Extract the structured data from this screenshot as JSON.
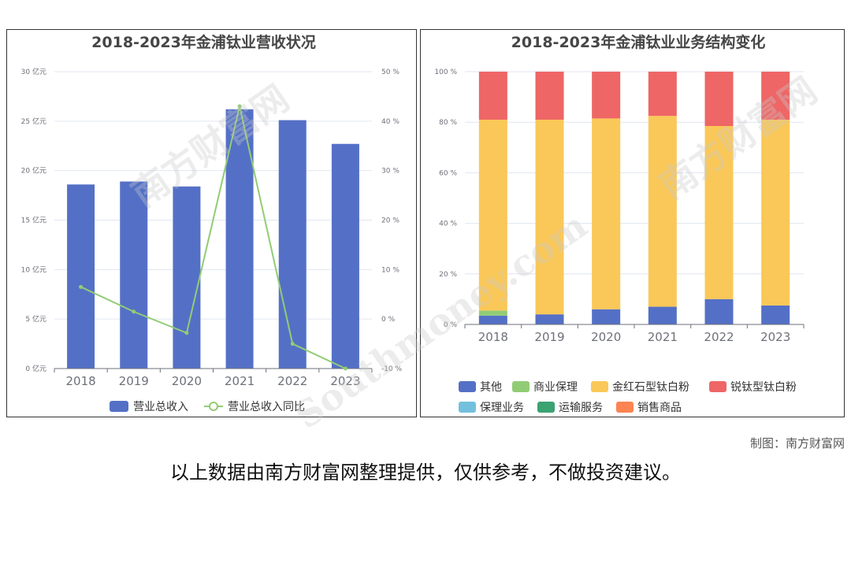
{
  "chart_data": [
    {
      "type": "bar",
      "title": "2018-2023年金浦钛业营收状况",
      "categories": [
        "2018",
        "2019",
        "2020",
        "2021",
        "2022",
        "2023"
      ],
      "y_left": {
        "ticks": [
          "0 亿元",
          "5 亿元",
          "10 亿元",
          "15 亿元",
          "20 亿元",
          "25 亿元",
          "30 亿元"
        ],
        "range": [
          0,
          30
        ]
      },
      "y_right": {
        "ticks": [
          "-10 %",
          "0 %",
          "10 %",
          "20 %",
          "30 %",
          "40 %",
          "50 %"
        ],
        "range": [
          -10,
          50
        ]
      },
      "series": [
        {
          "name": "营业总收入",
          "kind": "bar",
          "axis": "left",
          "color": "#5470c6",
          "values": [
            18.6,
            18.9,
            18.4,
            26.2,
            25.1,
            22.7
          ]
        },
        {
          "name": "营业总收入同比",
          "kind": "line",
          "axis": "right",
          "color": "#91cc75",
          "values": [
            6.5,
            1.5,
            -2.8,
            43.0,
            -5.0,
            -10.0
          ]
        }
      ],
      "grid": true,
      "legend": "bottom"
    },
    {
      "type": "bar",
      "stacked": true,
      "title": "2018-2023年金浦钛业业务结构变化",
      "categories": [
        "2018",
        "2019",
        "2020",
        "2021",
        "2022",
        "2023"
      ],
      "y": {
        "ticks": [
          "0 %",
          "20 %",
          "40 %",
          "60 %",
          "80 %",
          "100 %"
        ],
        "range": [
          0,
          100
        ]
      },
      "series": [
        {
          "name": "其他",
          "color": "#5470c6",
          "values": [
            3.5,
            4.0,
            6.0,
            7.0,
            10.0,
            7.5
          ]
        },
        {
          "name": "商业保理",
          "color": "#91cc75",
          "values": [
            2.0,
            0,
            0,
            0,
            0,
            0
          ]
        },
        {
          "name": "金红石型钛白粉",
          "color": "#fac858",
          "values": [
            75.5,
            77.0,
            75.5,
            75.5,
            68.5,
            73.5
          ]
        },
        {
          "name": "锐钛型钛白粉",
          "color": "#ee6666",
          "values": [
            19.0,
            19.0,
            18.5,
            17.5,
            21.5,
            19.0
          ]
        },
        {
          "name": "保理业务",
          "color": "#73c0de",
          "values": [
            0,
            0,
            0,
            0,
            0,
            0
          ]
        },
        {
          "name": "运输服务",
          "color": "#3ba272",
          "values": [
            0,
            0,
            0,
            0,
            0,
            0
          ]
        },
        {
          "name": "销售商品",
          "color": "#fc8452",
          "values": [
            0,
            0,
            0,
            0,
            0,
            0
          ]
        }
      ],
      "grid": true,
      "legend": "bottom"
    }
  ],
  "footer": {
    "credit": "制图：南方财富网",
    "disclaimer": "以上数据由南方财富网整理提供，仅供参考，不做投资建议。"
  },
  "watermark": {
    "cn": "南方财富网",
    "en": "Southmoney.com"
  }
}
